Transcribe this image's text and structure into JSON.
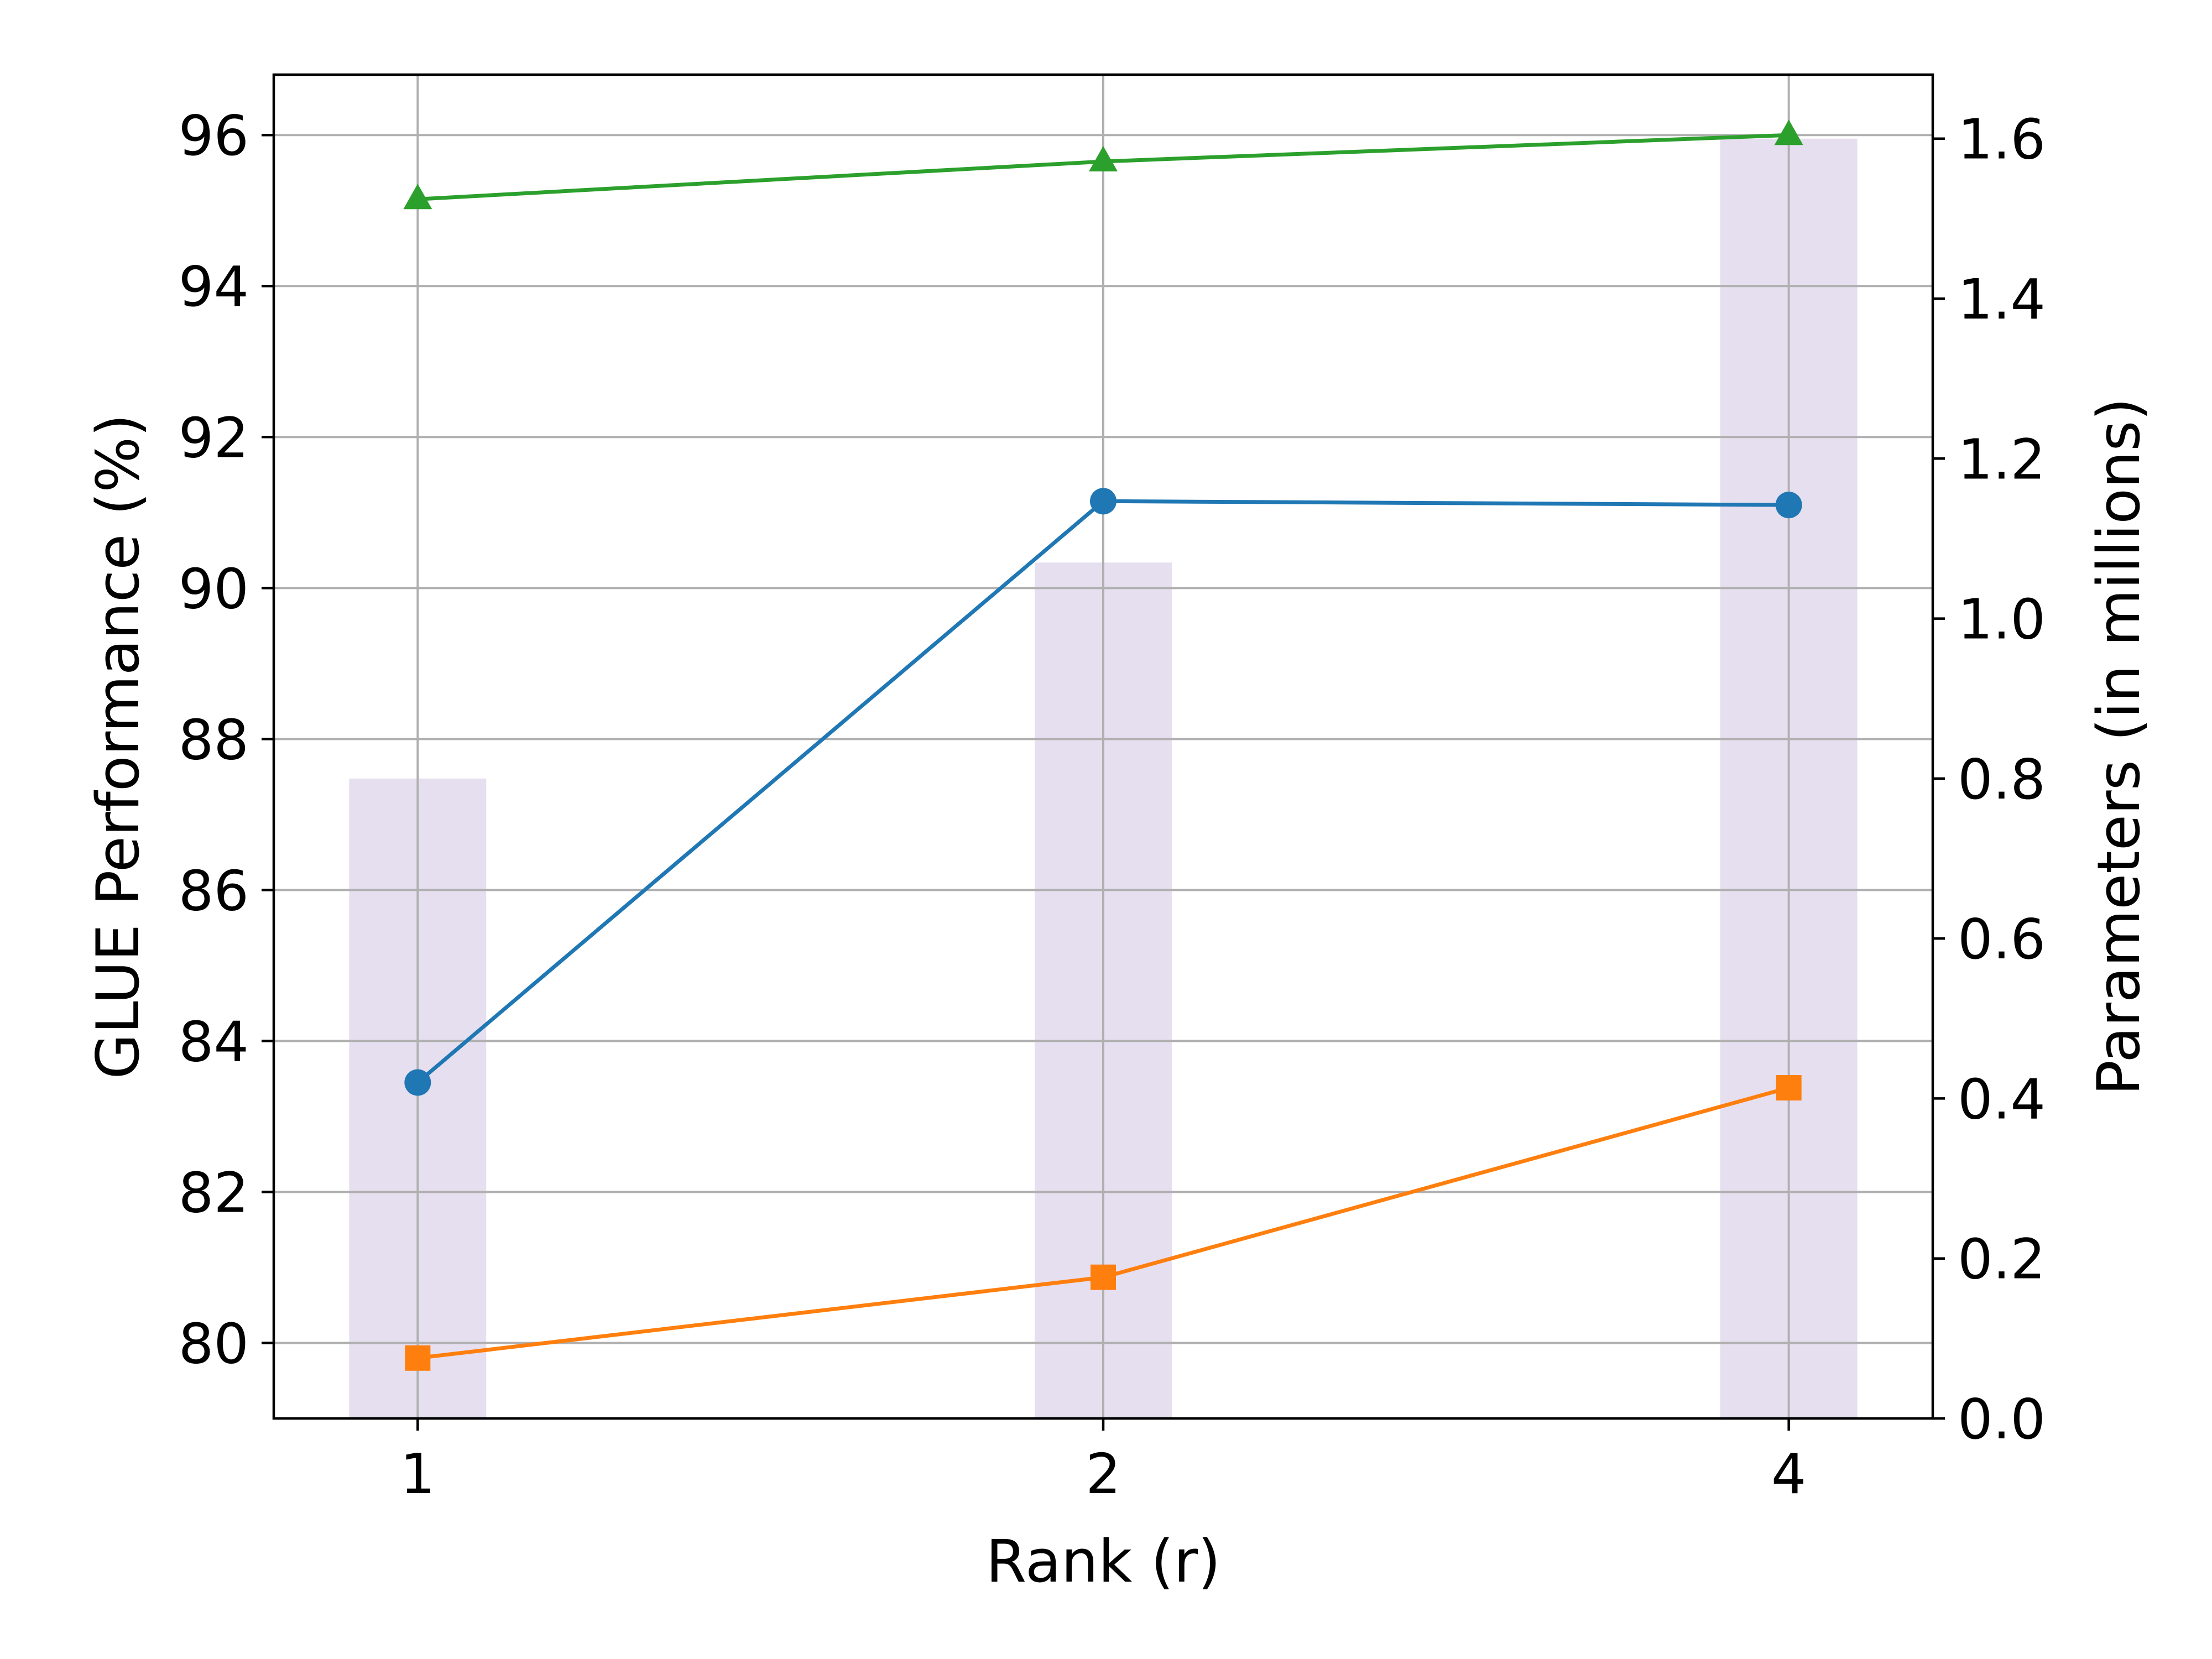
{
  "chart_data": {
    "type": "line",
    "title": "",
    "xlabel": "Rank (r)",
    "ylabel": "GLUE Performance (%)",
    "y2label": "Parameters (in millions)",
    "categories": [
      "1",
      "2",
      "4"
    ],
    "xlim": [
      -0.21,
      2.21
    ],
    "ylim": [
      79.0,
      96.8
    ],
    "y2lim": [
      0.0,
      1.68
    ],
    "yticks": [
      80,
      82,
      84,
      86,
      88,
      90,
      92,
      94,
      96
    ],
    "y2ticks": [
      "0.0",
      "0.2",
      "0.4",
      "0.6",
      "0.8",
      "1.0",
      "1.2",
      "1.4",
      "1.6"
    ],
    "grid": true,
    "legend": "none",
    "series": [
      {
        "kind": "line",
        "color": "#2ca02c",
        "marker": "triangle",
        "values": [
          95.15,
          95.65,
          96.0
        ]
      },
      {
        "kind": "line",
        "color": "#1f77b4",
        "marker": "circle",
        "values": [
          83.45,
          91.15,
          91.1
        ]
      },
      {
        "kind": "line",
        "color": "#ff7f0e",
        "marker": "square",
        "values": [
          79.8,
          80.87,
          83.38
        ]
      }
    ],
    "bars": {
      "kind": "bar",
      "axis": "right",
      "color": "#e6dff0",
      "values": [
        0.8,
        1.07,
        1.6
      ]
    }
  }
}
